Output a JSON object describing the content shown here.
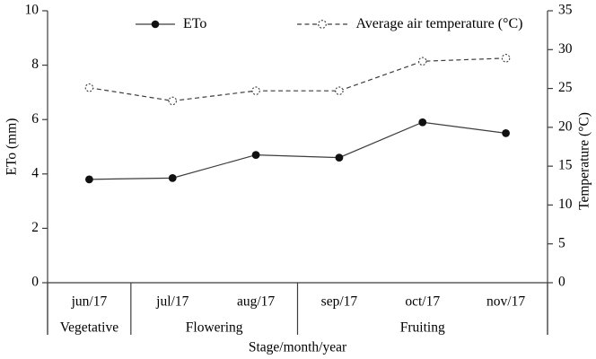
{
  "chart_data": {
    "type": "line",
    "categories": [
      "jun/17",
      "jul/17",
      "aug/17",
      "sep/17",
      "oct/17",
      "nov/17"
    ],
    "series": [
      {
        "name": "ETo",
        "axis": "left",
        "line": "solid",
        "marker": "filled-circle",
        "values": [
          3.8,
          3.85,
          4.7,
          4.6,
          5.9,
          5.5
        ]
      },
      {
        "name": "Average air temperature (°C)",
        "axis": "right",
        "line": "dashed",
        "marker": "open-circle-dashed",
        "values": [
          25.1,
          23.4,
          24.7,
          24.7,
          28.5,
          28.9
        ]
      }
    ],
    "stages": [
      {
        "label": "Vegetative",
        "start": 0,
        "end": 0
      },
      {
        "label": "Flowering",
        "start": 1,
        "end": 2
      },
      {
        "label": "Fruiting",
        "start": 3,
        "end": 5
      }
    ],
    "xlabel": "Stage/month/year",
    "ylabel_left": "ETo (mm)",
    "ylabel_right": "Temperature (°C)",
    "ylim_left": [
      0,
      10
    ],
    "yticks_left": [
      0,
      2,
      4,
      6,
      8,
      10
    ],
    "ylim_right": [
      0,
      35
    ],
    "yticks_right": [
      0,
      5,
      10,
      15,
      20,
      25,
      30,
      35
    ],
    "grid": false,
    "legend_position": "top-center",
    "colors": {
      "line": "#3c3c3c",
      "marker_fill": "#111111",
      "text": "#000000",
      "background": "#ffffff"
    }
  }
}
